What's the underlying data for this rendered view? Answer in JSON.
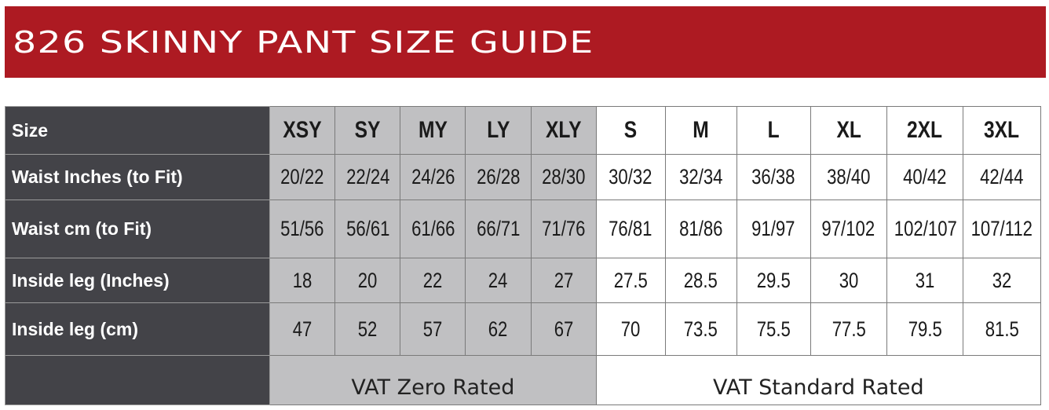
{
  "banner": {
    "title": "826 SKINNY PANT SIZE GUIDE"
  },
  "colors": {
    "banner_red": "#ad1a22",
    "label_dark": "#434348",
    "zero_rated_gray": "#c0c0c2",
    "standard_white": "#ffffff"
  },
  "table": {
    "header_label": "Size",
    "sizes": [
      "XSY",
      "SY",
      "MY",
      "LY",
      "XLY",
      "S",
      "M",
      "L",
      "XL",
      "2XL",
      "3XL"
    ],
    "rows": [
      {
        "label": "Waist Inches (to Fit)",
        "values": [
          "20/22",
          "22/24",
          "24/26",
          "26/28",
          "28/30",
          "30/32",
          "32/34",
          "36/38",
          "38/40",
          "40/42",
          "42/44"
        ]
      },
      {
        "label": "Waist cm (to Fit)",
        "values": [
          "51/56",
          "56/61",
          "61/66",
          "66/71",
          "71/76",
          "76/81",
          "81/86",
          "91/97",
          "97/102",
          "102/107",
          "107/112"
        ]
      },
      {
        "label": "Inside leg (Inches)",
        "values": [
          "18",
          "20",
          "22",
          "24",
          "27",
          "27.5",
          "28.5",
          "29.5",
          "30",
          "31",
          "32"
        ]
      },
      {
        "label": "Inside leg (cm)",
        "values": [
          "47",
          "52",
          "57",
          "62",
          "67",
          "70",
          "73.5",
          "75.5",
          "77.5",
          "79.5",
          "81.5"
        ]
      }
    ],
    "vat_zero": "VAT Zero Rated",
    "vat_standard": "VAT Standard Rated"
  }
}
